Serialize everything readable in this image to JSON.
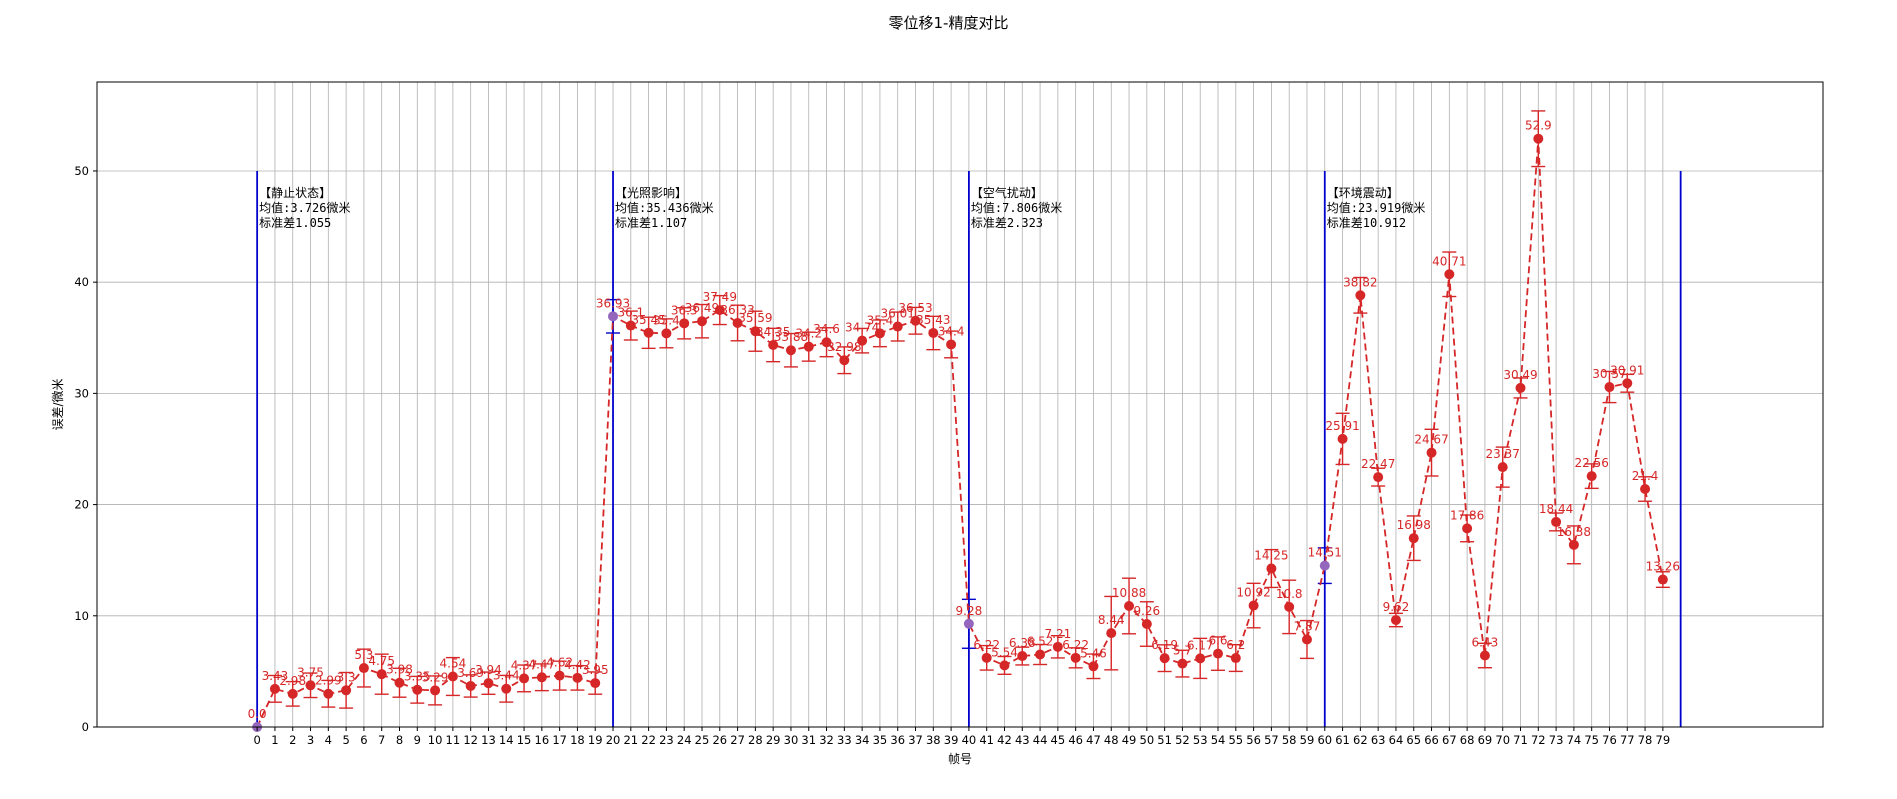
{
  "chart_data": {
    "type": "line",
    "title": "零位移1-精度对比",
    "xlabel": "帧号",
    "ylabel": "误差/微米",
    "xlim": [
      -9,
      88
    ],
    "ylim": [
      0,
      58
    ],
    "yticks": [
      0,
      10,
      20,
      30,
      40,
      50
    ],
    "grid": true,
    "line_style": "dashed",
    "colors": {
      "series": "#d62728",
      "divider": "#0000cc",
      "marker_first": "#9467bd"
    },
    "x": [
      0,
      1,
      2,
      3,
      4,
      5,
      6,
      7,
      8,
      9,
      10,
      11,
      12,
      13,
      14,
      15,
      16,
      17,
      18,
      19,
      20,
      21,
      22,
      23,
      24,
      25,
      26,
      27,
      28,
      29,
      30,
      31,
      32,
      33,
      34,
      35,
      36,
      37,
      38,
      39,
      40,
      41,
      42,
      43,
      44,
      45,
      46,
      47,
      48,
      49,
      50,
      51,
      52,
      53,
      54,
      55,
      56,
      57,
      58,
      59,
      60,
      61,
      62,
      63,
      64,
      65,
      66,
      67,
      68,
      69,
      70,
      71,
      72,
      73,
      74,
      75,
      76,
      77,
      78,
      79
    ],
    "values": [
      0.0,
      3.43,
      2.98,
      3.75,
      2.99,
      3.3,
      5.3,
      4.75,
      3.98,
      3.35,
      3.29,
      4.54,
      3.69,
      3.94,
      3.44,
      4.37,
      4.47,
      4.62,
      4.42,
      3.95,
      36.93,
      36.1,
      35.45,
      35.4,
      36.3,
      36.49,
      37.49,
      36.33,
      35.59,
      34.35,
      33.88,
      34.2,
      34.6,
      32.98,
      34.74,
      35.4,
      36.01,
      36.53,
      35.43,
      34.4,
      9.28,
      6.22,
      5.54,
      6.38,
      6.52,
      7.21,
      6.22,
      5.46,
      8.44,
      10.88,
      9.26,
      6.19,
      5.7,
      6.17,
      6.6,
      6.2,
      10.92,
      14.25,
      10.8,
      7.87,
      14.51,
      25.91,
      38.82,
      22.47,
      9.62,
      16.98,
      24.67,
      40.71,
      17.86,
      6.43,
      23.37,
      30.49,
      52.9,
      18.44,
      16.38,
      22.56,
      30.57,
      30.91,
      21.4,
      13.26
    ],
    "labels": [
      "0.0",
      "3.43",
      "2.98",
      "3.75",
      "2.99",
      "3.3",
      "5.3",
      "4.75",
      "3.98",
      "3.35",
      "3.29",
      "4.54",
      "3.69",
      "3.94",
      "3.44",
      "4.37",
      "4.47",
      "4.62",
      "4.42",
      "3.95",
      "36.93",
      "36.1",
      "35.45",
      "35.4",
      "36.3",
      "36.49",
      "37.49",
      "36.33",
      "35.59",
      "34.35",
      "33.88",
      "34.2",
      "34.6",
      "32.98",
      "34.74",
      "35.4",
      "36.01",
      "36.53",
      "35.43",
      "34.4",
      "9.28",
      "6.22",
      "5.54",
      "6.38",
      "6.52",
      "7.21",
      "6.22",
      "5.46",
      "8.44",
      "10.88",
      "9.26",
      "6.19",
      "5.7",
      "6.17",
      "6.6",
      "6.2",
      "10.92",
      "14.25",
      "10.8",
      "7.87",
      "14.51",
      "25.91",
      "38.82",
      "22.47",
      "9.62",
      "16.98",
      "24.67",
      "40.71",
      "17.86",
      "6.43",
      "23.37",
      "30.49",
      "52.9",
      "18.44",
      "16.38",
      "22.56",
      "30.57",
      "30.91",
      "21.4",
      "13.26"
    ],
    "errors": [
      0.0,
      1.2,
      1.1,
      1.1,
      1.2,
      1.6,
      1.7,
      1.8,
      1.3,
      1.2,
      1.3,
      1.7,
      1.0,
      1.0,
      1.2,
      1.2,
      1.2,
      1.3,
      1.1,
      1.0,
      1.5,
      1.3,
      1.4,
      1.3,
      1.4,
      1.5,
      1.3,
      1.6,
      1.8,
      1.5,
      1.5,
      1.3,
      1.3,
      1.2,
      1.1,
      1.2,
      1.3,
      1.2,
      1.5,
      1.2,
      2.2,
      1.1,
      0.8,
      0.8,
      0.9,
      1.0,
      0.9,
      1.1,
      3.3,
      2.5,
      2.0,
      1.2,
      1.2,
      1.8,
      1.5,
      1.2,
      2.0,
      1.7,
      2.4,
      1.7,
      1.6,
      2.3,
      1.6,
      0.8,
      0.6,
      2.0,
      2.1,
      2.0,
      1.2,
      1.1,
      1.8,
      0.9,
      2.5,
      0.8,
      1.7,
      1.1,
      1.4,
      0.8,
      1.1,
      0.7
    ],
    "dividers": [
      0,
      20,
      40,
      60,
      80
    ],
    "divider_top": 50,
    "annotations": [
      {
        "x": 0,
        "lines": [
          "【静止状态】",
          "均值:3.726微米",
          "标准差1.055"
        ]
      },
      {
        "x": 20,
        "lines": [
          "【光照影响】",
          "均值:35.436微米",
          "标准差1.107"
        ]
      },
      {
        "x": 40,
        "lines": [
          "【空气扰动】",
          "均值:7.806微米",
          "标准差2.323"
        ]
      },
      {
        "x": 60,
        "lines": [
          "【环境震动】",
          "均值:23.919微米",
          "标准差10.912"
        ]
      }
    ]
  }
}
